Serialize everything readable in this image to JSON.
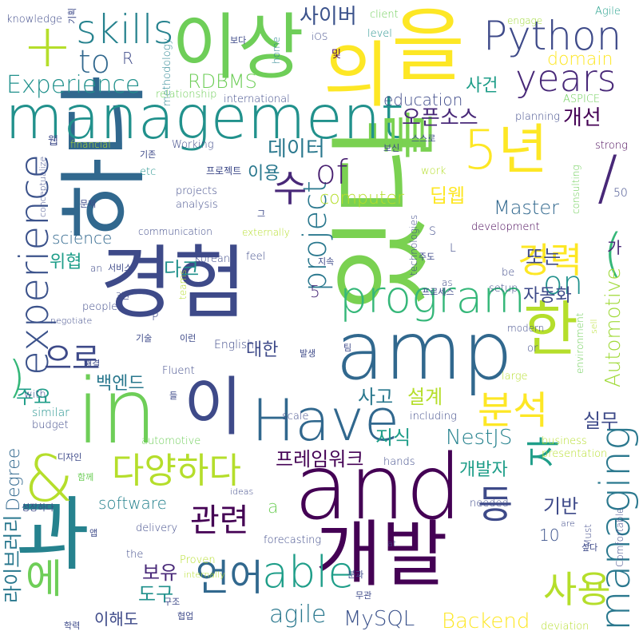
{
  "words": [
    {
      "text": "and",
      "color": "#440154"
    },
    {
      "text": "경험",
      "color": "#3e4a89"
    },
    {
      "text": "있다",
      "color": "#7ad151"
    },
    {
      "text": "하다",
      "color": "#31688e"
    },
    {
      "text": "in",
      "color": "#6ece58"
    },
    {
      "text": "을",
      "color": "#fde725"
    },
    {
      "text": "management",
      "color": "#21918c"
    },
    {
      "text": "이상",
      "color": "#6ece58"
    },
    {
      "text": "과",
      "color": "#26828e"
    },
    {
      "text": "의",
      "color": "#fde725"
    },
    {
      "text": "개발",
      "color": "#440154"
    },
    {
      "text": "amp",
      "color": "#31688e"
    },
    {
      "text": "Have",
      "color": "#31688e"
    },
    {
      "text": "5년",
      "color": "#fde725"
    },
    {
      "text": "이",
      "color": "#3e4a89"
    },
    {
      "text": "한",
      "color": "#b5de2b"
    },
    {
      "text": "&",
      "color": "#b5de2b"
    },
    {
      "text": "를",
      "color": "#7ad151"
    },
    {
      "text": "program",
      "color": "#35b779"
    },
    {
      "text": "Python",
      "color": "#3e4a89"
    },
    {
      "text": "experience",
      "color": "#3b528b"
    },
    {
      "text": "managing",
      "color": "#2a788e"
    },
    {
      "text": "skills",
      "color": "#26828e"
    },
    {
      "text": "years",
      "color": "#482878"
    },
    {
      "text": "Experience",
      "color": "#21918c"
    },
    {
      "text": "다양하다",
      "color": "#b5de2b"
    },
    {
      "text": "+",
      "color": "#b5de2b"
    },
    {
      "text": "/",
      "color": "#482878"
    },
    {
      "text": "(",
      "color": "#35b779"
    },
    {
      "text": ")",
      "color": "#35b779"
    },
    {
      "text": "project",
      "color": "#2a788e"
    },
    {
      "text": "able",
      "color": "#1f9e89"
    },
    {
      "text": "of",
      "color": "#481f70"
    },
    {
      "text": "on",
      "color": "#21918c"
    },
    {
      "text": "경력",
      "color": "#fde725"
    },
    {
      "text": "등",
      "color": "#3e4a89"
    },
    {
      "text": "수",
      "color": "#482878"
    },
    {
      "text": "사용",
      "color": "#b5de2b"
    },
    {
      "text": "관련",
      "color": "#440154"
    },
    {
      "text": "언어",
      "color": "#31688e"
    },
    {
      "text": "분석",
      "color": "#fde725"
    },
    {
      "text": "에",
      "color": "#6ece58"
    },
    {
      "text": "자",
      "color": "#1f9e89"
    },
    {
      "text": "으로",
      "color": "#3e4a89"
    },
    {
      "text": "to",
      "color": "#31688e"
    },
    {
      "text": "agile",
      "color": "#2a788e"
    },
    {
      "text": "MySQL",
      "color": "#3b528b"
    },
    {
      "text": "Backend",
      "color": "#fde725"
    },
    {
      "text": "Automotive",
      "color": "#a0da39"
    },
    {
      "text": "RDBMS",
      "color": "#6ece58"
    },
    {
      "text": "사이버",
      "color": "#3b528b"
    },
    {
      "text": "데이터",
      "color": "#2a788e"
    },
    {
      "text": "오픈소스",
      "color": "#482878"
    },
    {
      "text": "education",
      "color": "#3e4a89"
    },
    {
      "text": "computer",
      "color": "#b5de2b"
    },
    {
      "text": "딥웹",
      "color": "#fde725"
    },
    {
      "text": "사건",
      "color": "#1f9e89"
    },
    {
      "text": "개선",
      "color": "#440154"
    },
    {
      "text": "domain",
      "color": "#fde725"
    },
    {
      "text": "Master",
      "color": "#31688e"
    },
    {
      "text": "science",
      "color": "#31688e"
    },
    {
      "text": "software",
      "color": "#26828e"
    },
    {
      "text": "Degree",
      "color": "#31688e"
    },
    {
      "text": "자동화",
      "color": "#3e4a89"
    },
    {
      "text": "주요",
      "color": "#1f9e89"
    },
    {
      "text": "백엔드",
      "color": "#2a788e"
    },
    {
      "text": "사고",
      "color": "#2a788e"
    },
    {
      "text": "설계",
      "color": "#b5de2b"
    },
    {
      "text": "실무",
      "color": "#3e4a89"
    },
    {
      "text": "대한",
      "color": "#3e4a89"
    },
    {
      "text": "지식",
      "color": "#1f9e89"
    },
    {
      "text": "NestJS",
      "color": "#26828e"
    },
    {
      "text": "프레임워크",
      "color": "#440154"
    },
    {
      "text": "개발자",
      "color": "#1f9e89"
    },
    {
      "text": "기반",
      "color": "#3e4a89"
    },
    {
      "text": "도구",
      "color": "#21918c"
    },
    {
      "text": "보유",
      "color": "#482878"
    },
    {
      "text": "이해도",
      "color": "#3e4a89"
    },
    {
      "text": "라이브러리",
      "color": "#2a788e"
    },
    {
      "text": "다크",
      "color": "#21918c"
    },
    {
      "text": "위협",
      "color": "#1f9e89"
    },
    {
      "text": "이용",
      "color": "#2a788e"
    },
    {
      "text": "또는",
      "color": "#3e4a89"
    },
    {
      "text": "가",
      "color": "#482878"
    },
    {
      "text": "a",
      "color": "#6ece58"
    },
    {
      "text": "5",
      "color": "#482878"
    },
    {
      "text": "10",
      "color": "#3b528b"
    },
    {
      "text": "R",
      "color": "#3e4a89"
    },
    {
      "text": "L",
      "color": "#3e4a89"
    },
    {
      "text": "S",
      "color": "#3e4a89"
    },
    {
      "text": "P",
      "color": "#3e4a89"
    },
    {
      "text": "50",
      "color": "#3e4a89"
    },
    {
      "text": "knowledge",
      "color": "#3e4a89"
    },
    {
      "text": "기획",
      "color": "#3e4a89"
    },
    {
      "text": "methodology",
      "color": "#26828e"
    },
    {
      "text": "home",
      "color": "#26828e"
    },
    {
      "text": "iOS",
      "color": "#3e4a89"
    },
    {
      "text": "client",
      "color": "#6ece58"
    },
    {
      "text": "engage",
      "color": "#a0da39"
    },
    {
      "text": "Agile",
      "color": "#1f9e89"
    },
    {
      "text": "level",
      "color": "#21918c"
    },
    {
      "text": "보다",
      "color": "#3e4a89"
    },
    {
      "text": "및",
      "color": "#440154"
    },
    {
      "text": "relationship",
      "color": "#6ece58"
    },
    {
      "text": "international",
      "color": "#3e4a89"
    },
    {
      "text": "ASPICE",
      "color": "#6ece58"
    },
    {
      "text": "planning",
      "color": "#3e4a89"
    },
    {
      "text": "웹",
      "color": "#3e4a89"
    },
    {
      "text": "financial",
      "color": "#b5de2b"
    },
    {
      "text": "기존",
      "color": "#3e4a89"
    },
    {
      "text": "Working",
      "color": "#3e4a89"
    },
    {
      "text": "보신",
      "color": "#3e4a89"
    },
    {
      "text": "스스로",
      "color": "#3e4a89"
    },
    {
      "text": "strong",
      "color": "#440154"
    },
    {
      "text": "conceptualize",
      "color": "#3e4a89"
    },
    {
      "text": "etc",
      "color": "#21918c"
    },
    {
      "text": "프로젝트",
      "color": "#3e4a89"
    },
    {
      "text": "work",
      "color": "#b5de2b"
    },
    {
      "text": "consulting",
      "color": "#6ece58"
    },
    {
      "text": "projects",
      "color": "#3e4a89"
    },
    {
      "text": "analysis",
      "color": "#3e4a89"
    },
    {
      "text": "문제",
      "color": "#3e4a89"
    },
    {
      "text": "그",
      "color": "#3e4a89"
    },
    {
      "text": "technologies",
      "color": "#3e4a89"
    },
    {
      "text": "communication",
      "color": "#3e4a89"
    },
    {
      "text": "externally",
      "color": "#b5de2b"
    },
    {
      "text": "development",
      "color": "#440154"
    },
    {
      "text": "feel",
      "color": "#3e4a89"
    },
    {
      "text": "Korean",
      "color": "#3e4a89"
    },
    {
      "text": "지속",
      "color": "#3e4a89"
    },
    {
      "text": "주도",
      "color": "#3e4a89"
    },
    {
      "text": "an",
      "color": "#3e4a89"
    },
    {
      "text": "서비스",
      "color": "#3e4a89"
    },
    {
      "text": "teams",
      "color": "#b5de2b"
    },
    {
      "text": "be",
      "color": "#3e4a89"
    },
    {
      "text": "as",
      "color": "#3e4a89"
    },
    {
      "text": "프로세스",
      "color": "#3e4a89"
    },
    {
      "text": "setup",
      "color": "#3e4a89"
    },
    {
      "text": "3년",
      "color": "#3e4a89"
    },
    {
      "text": "people",
      "color": "#3e4a89"
    },
    {
      "text": "negotiate",
      "color": "#3e4a89"
    },
    {
      "text": "modern",
      "color": "#3e4a89"
    },
    {
      "text": "sell",
      "color": "#b5de2b"
    },
    {
      "text": "environment",
      "color": "#6ece58"
    },
    {
      "text": "English",
      "color": "#3e4a89"
    },
    {
      "text": "기술",
      "color": "#3e4a89"
    },
    {
      "text": "이런",
      "color": "#3e4a89"
    },
    {
      "text": "or",
      "color": "#3e4a89"
    },
    {
      "text": "해결",
      "color": "#3e4a89"
    },
    {
      "text": "발생",
      "color": "#3e4a89"
    },
    {
      "text": "팀",
      "color": "#3e4a89"
    },
    {
      "text": "Fluent",
      "color": "#3e4a89"
    },
    {
      "text": "large",
      "color": "#b5de2b"
    },
    {
      "text": "with",
      "color": "#3e4a89"
    },
    {
      "text": "들",
      "color": "#3e4a89"
    },
    {
      "text": "similar",
      "color": "#21918c"
    },
    {
      "text": "scale",
      "color": "#3e4a89"
    },
    {
      "text": "including",
      "color": "#3e4a89"
    },
    {
      "text": "budget",
      "color": "#3e4a89"
    },
    {
      "text": "automotive",
      "color": "#6ece58"
    },
    {
      "text": "business",
      "color": "#b5de2b"
    },
    {
      "text": "presentation",
      "color": "#b5de2b"
    },
    {
      "text": "디자인",
      "color": "#3e4a89"
    },
    {
      "text": "hands",
      "color": "#3e4a89"
    },
    {
      "text": "함께",
      "color": "#6ece58"
    },
    {
      "text": "ideas",
      "color": "#3e4a89"
    },
    {
      "text": "성장하다",
      "color": "#3e4a89"
    },
    {
      "text": "needed",
      "color": "#3e4a89"
    },
    {
      "text": "delivery",
      "color": "#3e4a89"
    },
    {
      "text": "forecasting",
      "color": "#3e4a89"
    },
    {
      "text": "Proven",
      "color": "#b5de2b"
    },
    {
      "text": "앱",
      "color": "#3e4a89"
    },
    {
      "text": "the",
      "color": "#3e4a89"
    },
    {
      "text": "internally",
      "color": "#b5de2b"
    },
    {
      "text": "분과",
      "color": "#3e4a89"
    },
    {
      "text": "are",
      "color": "#3e4a89"
    },
    {
      "text": "at",
      "color": "#3e4a89"
    },
    {
      "text": "Must",
      "color": "#3e4a89"
    },
    {
      "text": "싶다",
      "color": "#3e4a89"
    },
    {
      "text": "Comfortable",
      "color": "#3e4a89"
    },
    {
      "text": "무관",
      "color": "#3e4a89"
    },
    {
      "text": "구조",
      "color": "#3e4a89"
    },
    {
      "text": "협업",
      "color": "#3e4a89"
    },
    {
      "text": "학력",
      "color": "#3e4a89"
    },
    {
      "text": "deviation",
      "color": "#b5de2b"
    }
  ]
}
